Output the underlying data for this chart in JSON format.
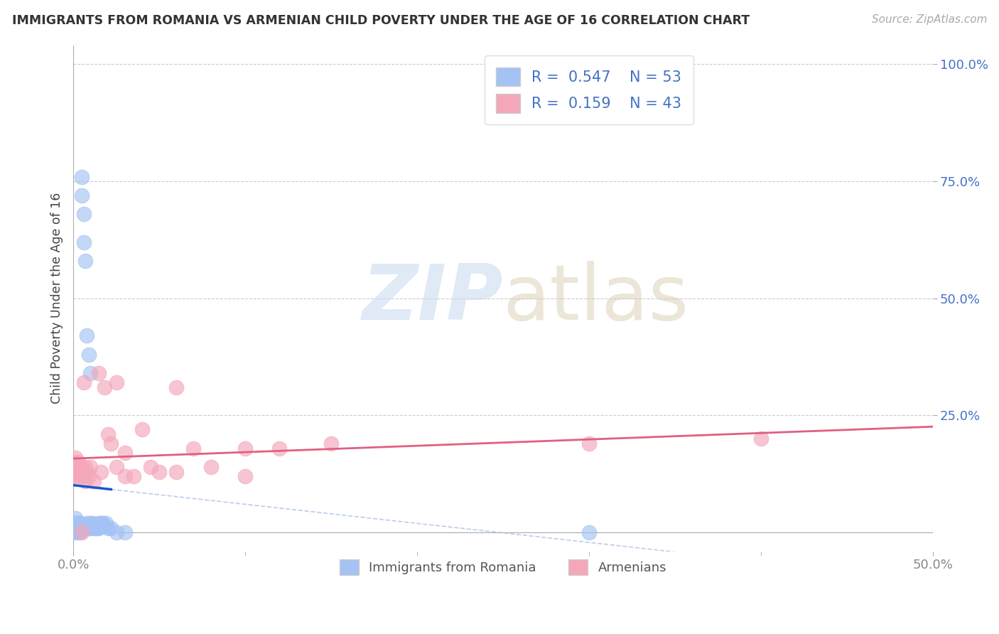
{
  "title": "IMMIGRANTS FROM ROMANIA VS ARMENIAN CHILD POVERTY UNDER THE AGE OF 16 CORRELATION CHART",
  "source": "Source: ZipAtlas.com",
  "ylabel": "Child Poverty Under the Age of 16",
  "xlim": [
    0.0,
    0.5
  ],
  "ylim": [
    -0.04,
    1.04
  ],
  "R_blue": 0.547,
  "N_blue": 53,
  "R_pink": 0.159,
  "N_pink": 43,
  "blue_color": "#a4c2f4",
  "pink_color": "#f4a7b9",
  "line_blue": "#1a56cc",
  "line_pink": "#e06080",
  "grid_color": "#cccccc",
  "tick_color_y": "#4472c4",
  "tick_color_x": "#888888",
  "blue_scatter_x": [
    0.0,
    0.0,
    0.0,
    0.001,
    0.001,
    0.001,
    0.001,
    0.001,
    0.002,
    0.002,
    0.002,
    0.002,
    0.002,
    0.003,
    0.003,
    0.003,
    0.003,
    0.004,
    0.004,
    0.004,
    0.004,
    0.005,
    0.005,
    0.005,
    0.006,
    0.006,
    0.006,
    0.007,
    0.007,
    0.008,
    0.008,
    0.008,
    0.009,
    0.009,
    0.01,
    0.01,
    0.01,
    0.011,
    0.012,
    0.012,
    0.013,
    0.014,
    0.015,
    0.015,
    0.016,
    0.017,
    0.018,
    0.019,
    0.02,
    0.022,
    0.025,
    0.03,
    0.3
  ],
  "blue_scatter_y": [
    0.02,
    0.01,
    0.0,
    0.015,
    0.02,
    0.01,
    0.03,
    0.01,
    0.02,
    0.01,
    0.015,
    0.02,
    0.0,
    0.01,
    0.02,
    0.0,
    0.015,
    0.01,
    0.015,
    0.02,
    0.0,
    0.76,
    0.72,
    0.01,
    0.68,
    0.62,
    0.01,
    0.58,
    0.01,
    0.42,
    0.01,
    0.02,
    0.38,
    0.01,
    0.34,
    0.01,
    0.02,
    0.02,
    0.015,
    0.01,
    0.01,
    0.01,
    0.02,
    0.01,
    0.02,
    0.02,
    0.015,
    0.02,
    0.01,
    0.01,
    0.0,
    0.0,
    0.0
  ],
  "pink_scatter_x": [
    0.0,
    0.0,
    0.001,
    0.001,
    0.002,
    0.002,
    0.003,
    0.003,
    0.004,
    0.004,
    0.005,
    0.005,
    0.006,
    0.006,
    0.007,
    0.007,
    0.008,
    0.009,
    0.01,
    0.012,
    0.015,
    0.016,
    0.018,
    0.02,
    0.022,
    0.025,
    0.025,
    0.03,
    0.03,
    0.035,
    0.04,
    0.045,
    0.05,
    0.06,
    0.06,
    0.07,
    0.08,
    0.1,
    0.1,
    0.12,
    0.15,
    0.3,
    0.4
  ],
  "pink_scatter_y": [
    0.15,
    0.12,
    0.14,
    0.16,
    0.13,
    0.12,
    0.15,
    0.13,
    0.14,
    0.12,
    0.0,
    0.14,
    0.12,
    0.32,
    0.14,
    0.11,
    0.13,
    0.12,
    0.14,
    0.11,
    0.34,
    0.13,
    0.31,
    0.21,
    0.19,
    0.14,
    0.32,
    0.17,
    0.12,
    0.12,
    0.22,
    0.14,
    0.13,
    0.31,
    0.13,
    0.18,
    0.14,
    0.12,
    0.18,
    0.18,
    0.19,
    0.19,
    0.2
  ]
}
